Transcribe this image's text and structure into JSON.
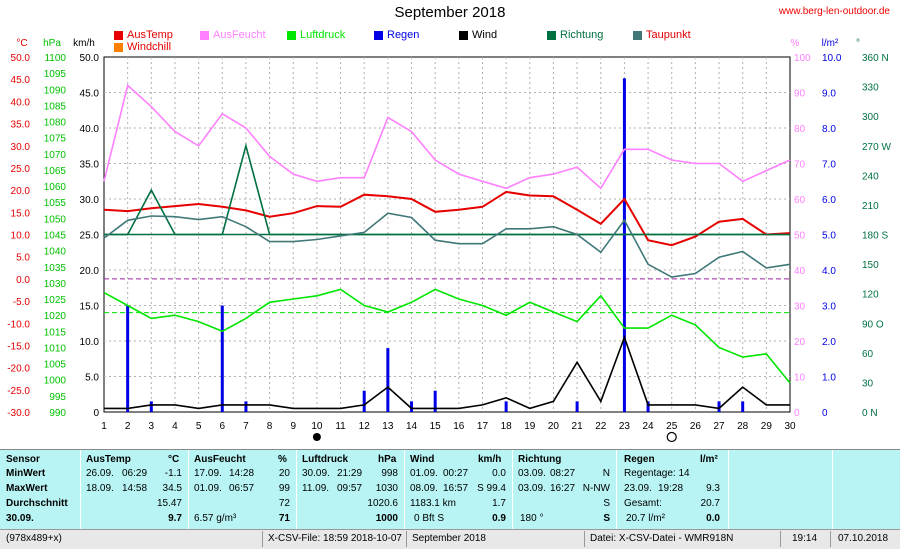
{
  "header": {
    "title": "September 2018",
    "url": "www.berg-len-outdoor.de"
  },
  "legend": [
    {
      "label": "AusTemp",
      "color": "#e60000",
      "text_color": "#e60000"
    },
    {
      "label": "Windchill",
      "color": "#ff8000",
      "text_color": "#e60000"
    },
    {
      "label": "AusFeucht",
      "color": "#ff80ff",
      "text_color": "#ff80ff"
    },
    {
      "label": "Luftdruck",
      "color": "#00e600",
      "text_color": "#00e600"
    },
    {
      "label": "Regen",
      "color": "#0000e6",
      "text_color": "#0000e6"
    },
    {
      "label": "Wind",
      "color": "#000000",
      "text_color": "#000000"
    },
    {
      "label": "Richtung",
      "color": "#007040",
      "text_color": "#007040"
    },
    {
      "label": "Taupunkt",
      "color": "#407878",
      "text_color": "#e60000"
    }
  ],
  "axis_units": {
    "temp": "°C",
    "pressure": "hPa",
    "wind": "km/h",
    "humidity": "%",
    "rain": "l/m²",
    "direction": "°"
  },
  "chart_data": {
    "type": "line",
    "title": "September 2018",
    "x": [
      1,
      2,
      3,
      4,
      5,
      6,
      7,
      8,
      9,
      10,
      11,
      12,
      13,
      14,
      15,
      16,
      17,
      18,
      19,
      20,
      21,
      22,
      23,
      24,
      25,
      26,
      27,
      28,
      29,
      30
    ],
    "xlim": [
      1,
      30
    ],
    "axes": {
      "temp": {
        "range": [
          -30,
          50
        ],
        "ticks": [
          "-30.0",
          "-25.0",
          "-20.0",
          "-15.0",
          "-10.0",
          "-5.0",
          "0.0",
          "5.0",
          "10.0",
          "15.0",
          "20.0",
          "25.0",
          "30.0",
          "35.0",
          "40.0",
          "45.0",
          "50.0"
        ]
      },
      "pressure": {
        "range": [
          990,
          1100
        ],
        "ticks": [
          "990",
          "995",
          "1000",
          "1005",
          "1010",
          "1015",
          "1020",
          "1025",
          "1030",
          "1035",
          "1040",
          "1045",
          "1050",
          "1055",
          "1060",
          "1065",
          "1070",
          "1075",
          "1080",
          "1085",
          "1090",
          "1095",
          "1100"
        ]
      },
      "wind": {
        "range": [
          0,
          50
        ],
        "ticks": [
          "0",
          "5.0",
          "10.0",
          "15.0",
          "20.0",
          "25.0",
          "30.0",
          "35.0",
          "40.0",
          "45.0",
          "50.0"
        ]
      },
      "humidity": {
        "range": [
          0,
          100
        ],
        "ticks": [
          "0",
          "10",
          "20",
          "30",
          "40",
          "50",
          "60",
          "70",
          "80",
          "90",
          "100"
        ]
      },
      "rain": {
        "range": [
          0,
          10
        ],
        "ticks": [
          "0",
          "1.0",
          "2.0",
          "3.0",
          "4.0",
          "5.0",
          "6.0",
          "7.0",
          "8.0",
          "9.0",
          "10.0"
        ]
      },
      "direction": {
        "range": [
          0,
          360
        ],
        "ticks": [
          "0 N",
          "30",
          "60",
          "90 O",
          "120",
          "150",
          "180 S",
          "210",
          "240",
          "270 W",
          "300",
          "330",
          "360 N"
        ]
      }
    },
    "series": [
      {
        "name": "AusTemp",
        "axis": "wind",
        "color": "#e60000",
        "values": [
          28.5,
          28.3,
          28.7,
          29.0,
          29.3,
          28.9,
          28.4,
          27.5,
          28.0,
          29.0,
          28.9,
          30.6,
          30.4,
          30.0,
          28.2,
          28.5,
          28.9,
          31.0,
          30.5,
          30.4,
          28.5,
          26.5,
          30.0,
          24.2,
          23.5,
          24.7,
          26.8,
          27.2,
          25.0,
          25.2
        ],
        "temp_values": [
          16.6,
          14.0,
          16.6,
          18.2,
          18.9,
          18.0,
          16.0,
          14.3,
          15.8,
          17.1,
          17.2,
          19.6,
          19.1,
          18.7,
          14.8,
          15.5,
          16.5,
          21.0,
          19.6,
          19.5,
          16.2,
          14.3,
          19.7,
          9.8,
          7.2,
          9.2,
          12.8,
          14.3,
          9.6,
          10.3
        ]
      },
      {
        "name": "AusFeucht",
        "axis": "humidity",
        "color": "#ff80ff",
        "values": [
          65,
          92,
          86,
          79,
          75,
          84,
          80,
          72,
          67,
          65,
          66,
          66,
          83,
          79,
          71,
          67,
          65,
          63,
          66,
          67,
          69,
          63,
          74,
          74,
          71,
          70,
          70,
          65,
          68,
          71
        ]
      },
      {
        "name": "Luftdruck",
        "axis": "pressure",
        "color": "#00e600",
        "values": [
          1027,
          1023,
          1019,
          1020,
          1018,
          1015,
          1019,
          1024,
          1025,
          1026,
          1028,
          1023,
          1021,
          1024,
          1028,
          1025,
          1023,
          1020,
          1024,
          1021,
          1018,
          1026,
          1016,
          1016,
          1020,
          1017,
          1010,
          1007,
          1008,
          999
        ]
      },
      {
        "name": "Regen",
        "axis": "rain",
        "color": "#0000e6",
        "type": "bar",
        "values": [
          0,
          3.0,
          0.3,
          0,
          0,
          3.0,
          0.3,
          0,
          0,
          0,
          0,
          0.6,
          1.8,
          0.3,
          0.6,
          0,
          0,
          0.3,
          0,
          0,
          0.3,
          0,
          9.4,
          0.3,
          0,
          0,
          0.3,
          0.3,
          0,
          0
        ]
      },
      {
        "name": "Wind",
        "axis": "wind",
        "color": "#000000",
        "values": [
          0.5,
          0.5,
          1.0,
          1.0,
          0.5,
          1.0,
          1.0,
          1.0,
          0.5,
          0.5,
          0.5,
          1.0,
          3.5,
          0.5,
          0.5,
          0.5,
          1.0,
          2.0,
          0.5,
          1.5,
          7.0,
          1.5,
          10.5,
          1.0,
          1.0,
          1.0,
          0.5,
          3.5,
          1.0,
          1.0
        ]
      },
      {
        "name": "Richtung",
        "axis": "direction",
        "color": "#007040",
        "values": [
          180,
          180,
          225,
          180,
          180,
          180,
          270,
          180,
          180,
          180,
          180,
          180,
          180,
          180,
          180,
          180,
          180,
          180,
          180,
          180,
          180,
          180,
          180,
          180,
          180,
          180,
          180,
          180,
          180,
          180
        ]
      },
      {
        "name": "Taupunkt",
        "axis": "wind",
        "color": "#407878",
        "values": [
          24.5,
          27.0,
          27.6,
          27.5,
          27.1,
          27.5,
          26.1,
          24.0,
          24.0,
          24.3,
          24.8,
          25.3,
          28.0,
          27.4,
          24.2,
          23.7,
          23.7,
          25.8,
          25.8,
          26.1,
          25.0,
          22.5,
          27.0,
          20.8,
          19.0,
          19.5,
          21.8,
          22.6,
          20.3,
          20.8
        ]
      }
    ],
    "reference_lines": [
      {
        "axis": "wind",
        "value": 25.0,
        "color": "#007040",
        "style": "solid"
      },
      {
        "axis": "temp",
        "value": 0.0,
        "color": "#a020a0",
        "style": "dashed"
      },
      {
        "axis": "humidity",
        "value": 28,
        "color": "#00e600",
        "style": "dashed"
      }
    ],
    "moon": [
      {
        "day": 10,
        "phase": "new"
      },
      {
        "day": 25,
        "phase": "full"
      }
    ]
  },
  "stats": {
    "sensor": {
      "title": "Sensor",
      "rows": [
        "MinWert",
        "MaxWert",
        "Durchschnitt",
        "30.09."
      ]
    },
    "austemp": {
      "title": "AusTemp",
      "unit": "°C",
      "min_date": "26.09.",
      "min_time": "06:29",
      "min": "-1.1",
      "max_date": "18.09.",
      "max_time": "14:58",
      "max": "34.5",
      "avg": "15.47",
      "today": "9.7"
    },
    "ausfeucht": {
      "title": "AusFeucht",
      "unit": "%",
      "min_date": "17.09.",
      "min_time": "14:28",
      "min": "20",
      "max_date": "01.09.",
      "max_time": "06:57",
      "max": "99",
      "avg": "72",
      "today_abs": "6.57 g/m³",
      "today": "71"
    },
    "luftdruck": {
      "title": "Luftdruck",
      "unit": "hPa",
      "min_date": "30.09.",
      "min_time": "21:29",
      "min": "998",
      "max_date": "11.09.",
      "max_time": "09:57",
      "max": "1030",
      "avg": "1020.6",
      "today": "1000"
    },
    "wind": {
      "title": "Wind",
      "unit": "km/h",
      "min_date": "01.09.",
      "min_time": "00:27",
      "min": "0.0",
      "max_date": "08.09.",
      "max_time": "16:57",
      "max": "S 99.4",
      "avg_km": "1183.1 km",
      "avg": "1.7",
      "today_bft": "0 Bft S",
      "today": "0.9"
    },
    "richtung": {
      "title": "Richtung",
      "min_date": "03.09.",
      "min_time": "08:27",
      "min": "N",
      "max_date": "03.09.",
      "max_time": "16:27",
      "max": "N-NW",
      "avg": "S",
      "today_deg": "180 °",
      "today": "S"
    },
    "regen": {
      "title": "Regen",
      "unit": "l/m²",
      "days": "Regentage: 14",
      "max_date": "23.09.",
      "max_time": "19:28",
      "max": "9.3",
      "total_label": "Gesamt:",
      "total": "20.7",
      "today_total": "20.7 l/m²",
      "today": "0.0"
    }
  },
  "statusbar": {
    "size": "(978x489+x)",
    "file": "X-CSV-File:  18:59  2018-10-07",
    "month": "September 2018",
    "datei": "Datei: X-CSV-Datei - WMR918N",
    "time": "19:14",
    "date": "07.10.2018"
  }
}
